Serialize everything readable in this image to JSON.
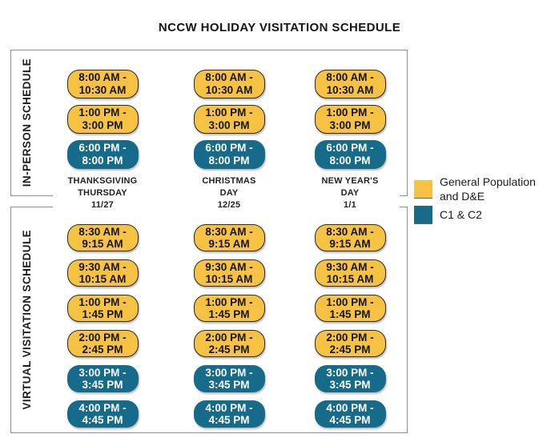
{
  "title": "NCCW HOLIDAY VISITATION SCHEDULE",
  "sections": {
    "in_person": {
      "label": "IN-PERSON SCHEDULE",
      "slots": [
        {
          "line1": "8:00 AM -",
          "line2": "10:30 AM",
          "category": "General Population and D&E"
        },
        {
          "line1": "1:00 PM -",
          "line2": "3:00 PM",
          "category": "General Population and D&E"
        },
        {
          "line1": "6:00 PM -",
          "line2": "8:00 PM",
          "category": "C1 & C2"
        }
      ]
    },
    "virtual": {
      "label": "VIRTUAL VISITATION SCHEDULE",
      "slots": [
        {
          "line1": "8:30 AM -",
          "line2": "9:15 AM",
          "category": "General Population and D&E"
        },
        {
          "line1": "9:30 AM -",
          "line2": "10:15 AM",
          "category": "General Population and D&E"
        },
        {
          "line1": "1:00 PM -",
          "line2": "1:45 PM",
          "category": "General Population and D&E"
        },
        {
          "line1": "2:00 PM -",
          "line2": "2:45 PM",
          "category": "General Population and D&E"
        },
        {
          "line1": "3:00 PM -",
          "line2": "3:45 PM",
          "category": "C1 & C2"
        },
        {
          "line1": "4:00 PM -",
          "line2": "4:45 PM",
          "category": "C1 & C2"
        }
      ]
    }
  },
  "days": [
    {
      "line1": "THANKSGIVING",
      "line2": "THURSDAY",
      "date": "11/27"
    },
    {
      "line1": "CHRISTMAS",
      "line2": "DAY",
      "date": "12/25"
    },
    {
      "line1": "NEW YEAR'S",
      "line2": "DAY",
      "date": "1/1"
    }
  ],
  "legend": {
    "items": [
      {
        "label": "General Population and D&E",
        "color": "#F5C244"
      },
      {
        "label": "C1 & C2",
        "color": "#176B8A"
      }
    ]
  },
  "colors": {
    "general_population": "#F5C244",
    "c1_c2": "#176B8A",
    "box_border": "#8F8F8F"
  }
}
